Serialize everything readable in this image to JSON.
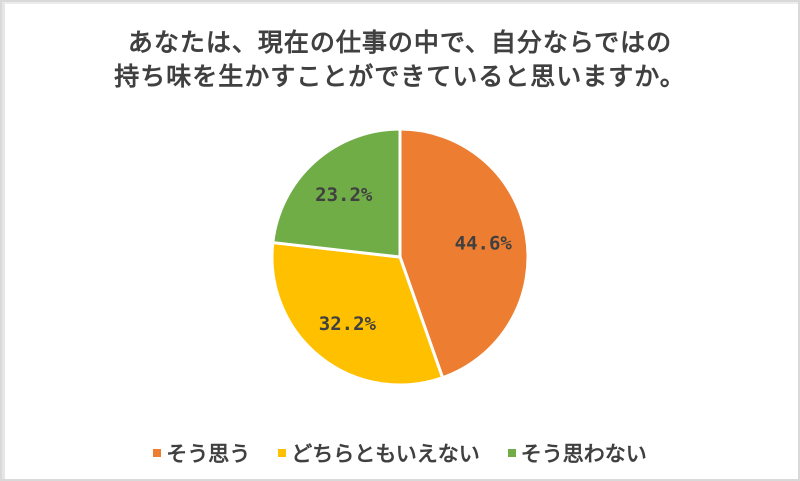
{
  "title": {
    "line1": "あなたは、現在の仕事の中で、自分ならではの",
    "line2": "持ち味を生かすことができていると思いますか。"
  },
  "chart_data": {
    "type": "pie",
    "title": "あなたは、現在の仕事の中で、自分ならではの持ち味を生かすことができていると思いますか。",
    "categories": [
      "そう思う",
      "どちらともいえない",
      "そう思わない"
    ],
    "values": [
      44.6,
      32.2,
      23.2
    ],
    "labels": [
      "44.6%",
      "32.2%",
      "23.2%"
    ],
    "colors": [
      "#ed7d31",
      "#ffc000",
      "#70ad47"
    ],
    "start_angle": "12 o'clock, clockwise",
    "legend_position": "bottom"
  },
  "legend": [
    {
      "label": "そう思う",
      "color": "#ed7d31"
    },
    {
      "label": "どちらともいえない",
      "color": "#ffc000"
    },
    {
      "label": "そう思わない",
      "color": "#70ad47"
    }
  ]
}
